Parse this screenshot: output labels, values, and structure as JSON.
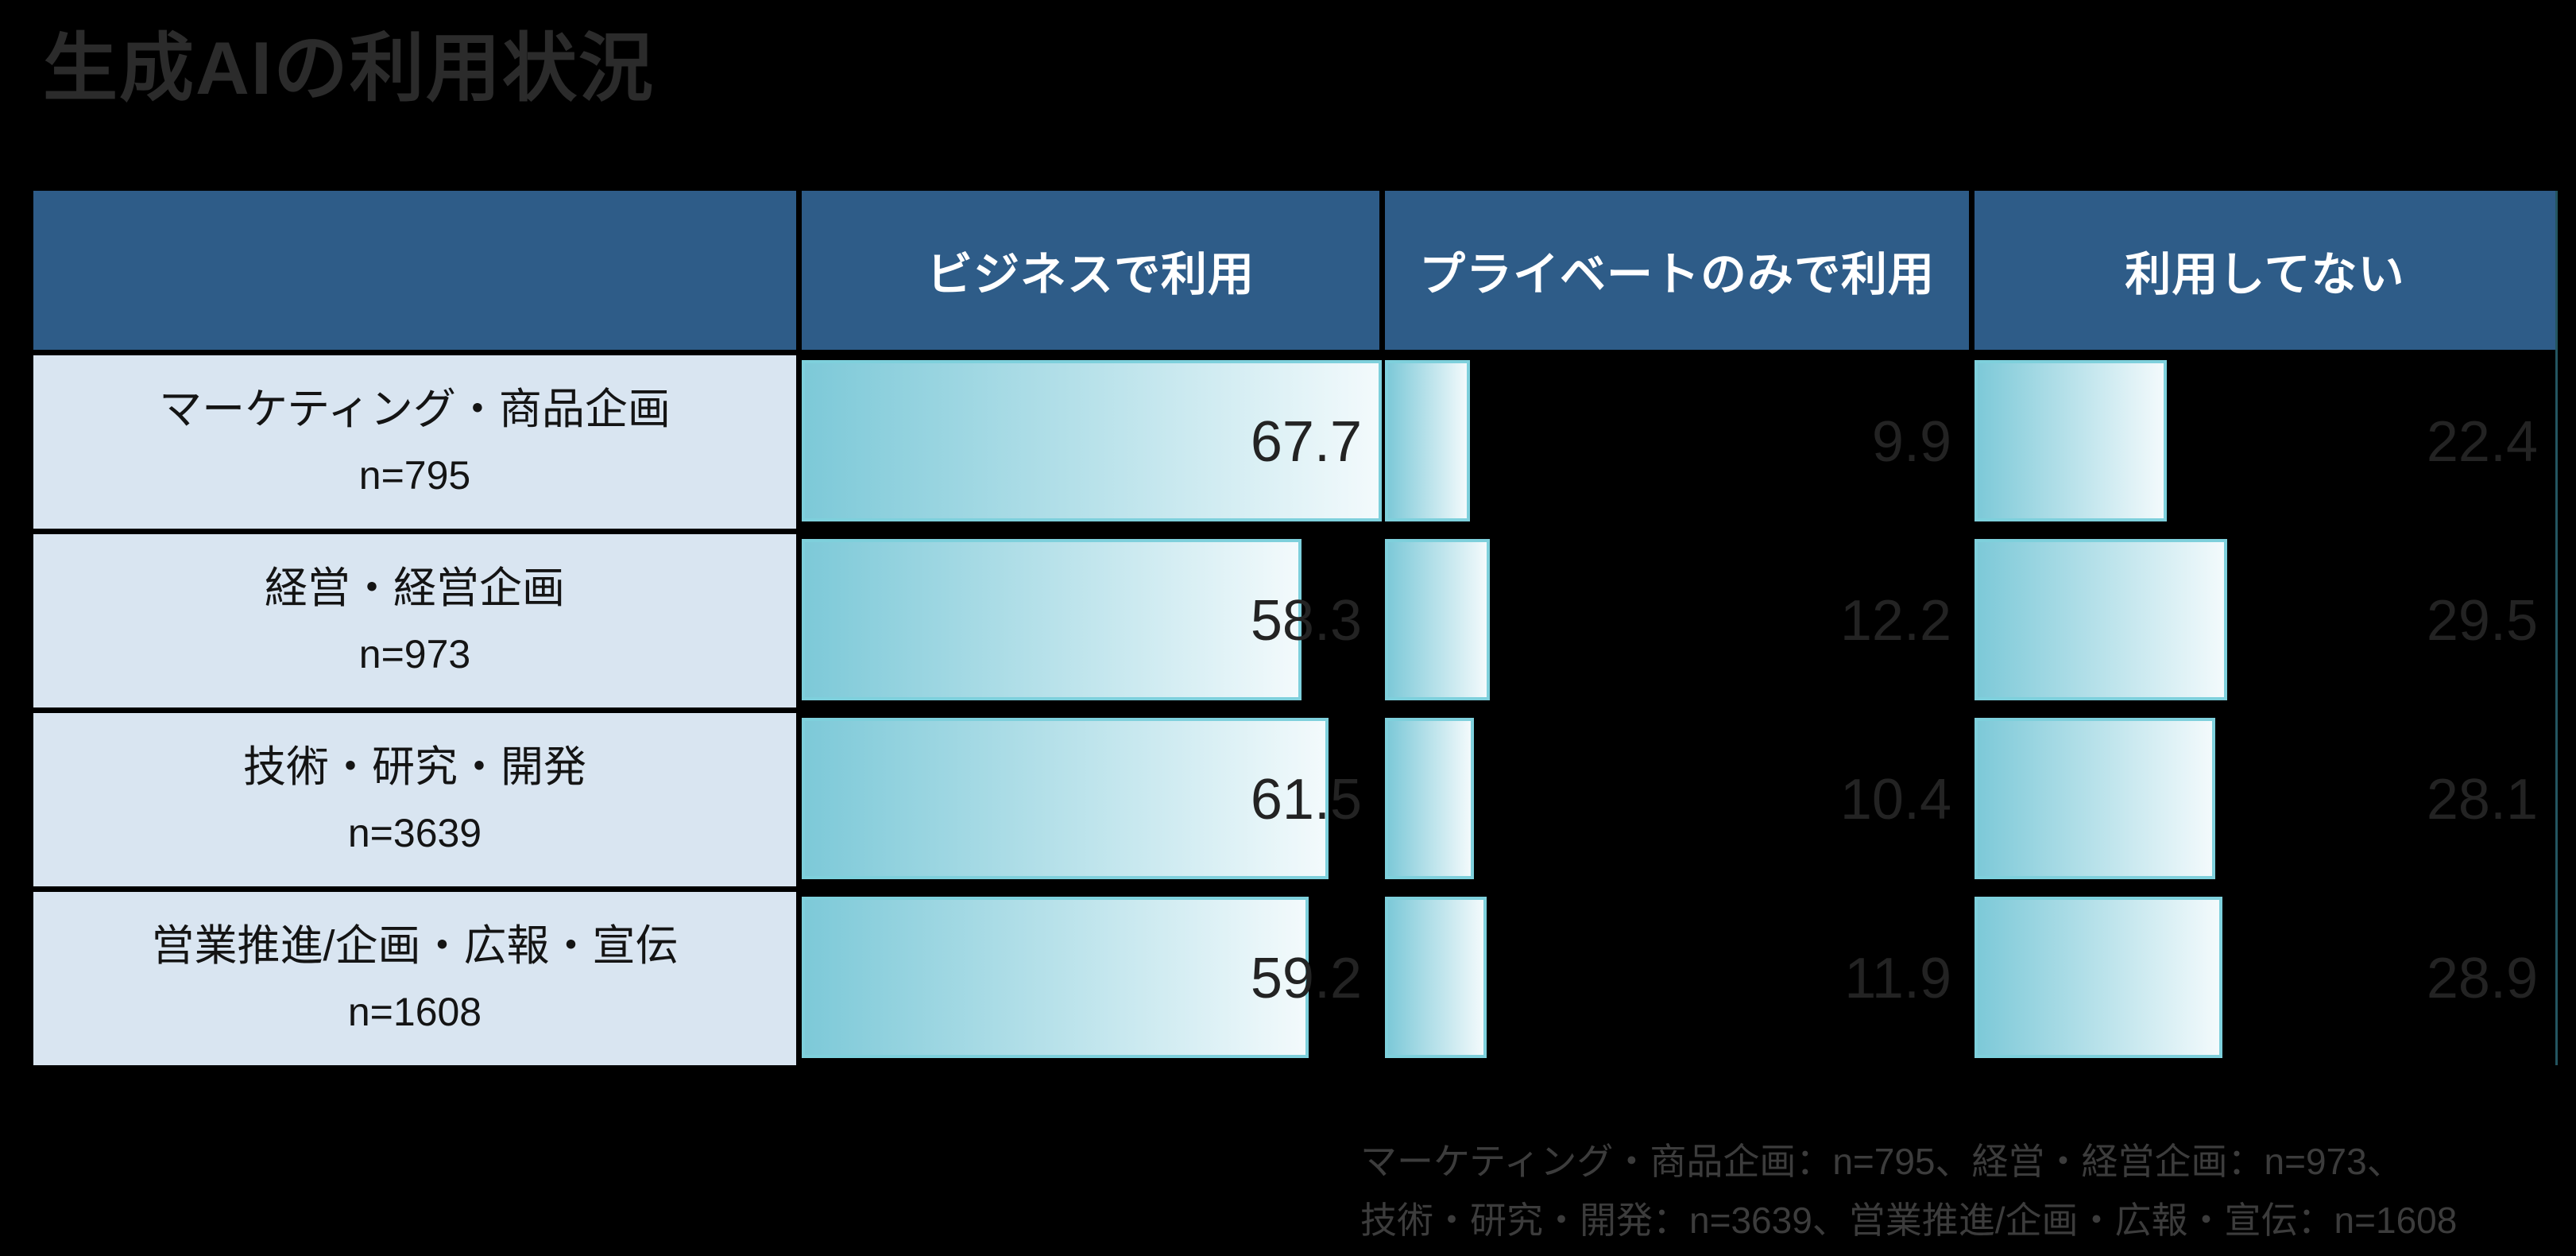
{
  "title": "生成AIの利用状況",
  "table": {
    "columns": [
      "ビジネスで利用",
      "プライベートのみで利用",
      "利用してない"
    ],
    "rows": [
      {
        "label": "マーケティング・商品企画",
        "n": "n=795",
        "values": [
          67.7,
          9.9,
          22.4
        ]
      },
      {
        "label": "経営・経営企画",
        "n": "n=973",
        "values": [
          58.3,
          12.2,
          29.5
        ]
      },
      {
        "label": "技術・研究・開発",
        "n": "n=3639",
        "values": [
          61.5,
          10.4,
          28.1
        ]
      },
      {
        "label": "営業推進/企画・広報・宣伝",
        "n": "n=1608",
        "values": [
          59.2,
          11.9,
          28.9
        ]
      }
    ]
  },
  "footnote": {
    "line1": "マーケティング・商品企画：n=795、経営・経営企画：n=973、",
    "line2": "技術・研究・開発：n=3639、営業推進/企画・広報・宣伝：n=1608"
  },
  "colors": {
    "header_bg": "#2e5c88",
    "header_text": "#ffffff",
    "label_bg": "#d9e5f1",
    "label_text": "#141414",
    "title_text": "#2b2b2b",
    "number_text": "#232323",
    "footnote_text": "#3c3c3c",
    "bar_start": "#7dc9d8",
    "bar_end": "#f3fafc",
    "bar_border": "#7ed0dc",
    "edge_line": "#235560"
  },
  "chart_data": {
    "type": "bar",
    "orientation": "horizontal",
    "title": "生成AIの利用状況",
    "unit": "%",
    "categories": [
      "マーケティング・商品企画",
      "経営・経営企画",
      "技術・研究・開発",
      "営業推進/企画・広報・宣伝"
    ],
    "sample_sizes": [
      795,
      973,
      3639,
      1608
    ],
    "series": [
      {
        "name": "ビジネスで利用",
        "values": [
          67.7,
          58.3,
          61.5,
          59.2
        ]
      },
      {
        "name": "プライベートのみで利用",
        "values": [
          9.9,
          12.2,
          10.4,
          11.9
        ]
      },
      {
        "name": "利用してない",
        "values": [
          22.4,
          29.5,
          28.1,
          28.9
        ]
      }
    ],
    "value_labels": true,
    "grid": false,
    "legend_position": "column-headers",
    "xlim": [
      0,
      67.7
    ]
  }
}
